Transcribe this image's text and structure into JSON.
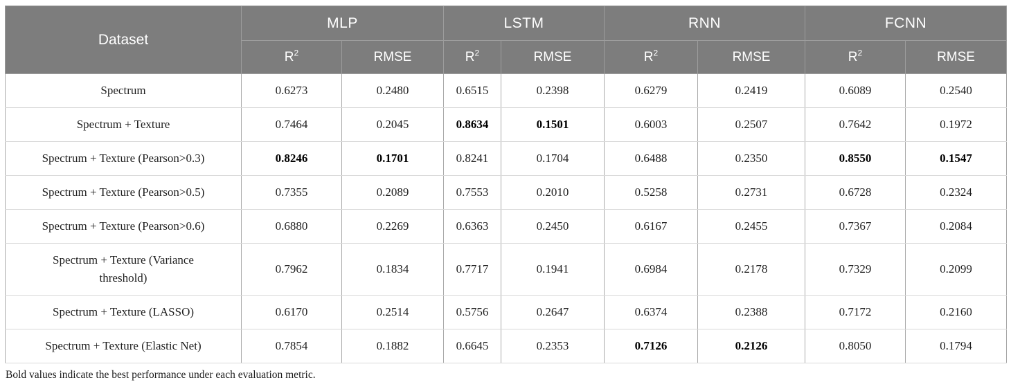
{
  "colors": {
    "header_bg": "#7d7d7d",
    "header_text": "#ffffff",
    "header_line": "#9d9d9d",
    "cell_line_v": "#a8a8a8",
    "cell_line_h": "#d9d9d9",
    "outer_line": "#b5b5b5",
    "body_text": "#1f1f1f",
    "bold_text": "#000000"
  },
  "table": {
    "corner_label": "Dataset",
    "groups": [
      {
        "label": "MLP"
      },
      {
        "label": "LSTM"
      },
      {
        "label": "RNN"
      },
      {
        "label": "FCNN"
      }
    ],
    "metrics": {
      "r2_base": "R",
      "r2_sup": "2",
      "rmse": "RMSE"
    },
    "rows": [
      {
        "dataset": "Spectrum",
        "values": [
          "0.6273",
          "0.2480",
          "0.6515",
          "0.2398",
          "0.6279",
          "0.2419",
          "0.6089",
          "0.2540"
        ],
        "bold": [
          0,
          0,
          0,
          0,
          0,
          0,
          0,
          0
        ]
      },
      {
        "dataset": "Spectrum + Texture",
        "values": [
          "0.7464",
          "0.2045",
          "0.8634",
          "0.1501",
          "0.6003",
          "0.2507",
          "0.7642",
          "0.1972"
        ],
        "bold": [
          0,
          0,
          1,
          1,
          0,
          0,
          0,
          0
        ]
      },
      {
        "dataset": "Spectrum + Texture (Pearson>0.3)",
        "values": [
          "0.8246",
          "0.1701",
          "0.8241",
          "0.1704",
          "0.6488",
          "0.2350",
          "0.8550",
          "0.1547"
        ],
        "bold": [
          1,
          1,
          0,
          0,
          0,
          0,
          1,
          1
        ]
      },
      {
        "dataset": "Spectrum + Texture (Pearson>0.5)",
        "values": [
          "0.7355",
          "0.2089",
          "0.7553",
          "0.2010",
          "0.5258",
          "0.2731",
          "0.6728",
          "0.2324"
        ],
        "bold": [
          0,
          0,
          0,
          0,
          0,
          0,
          0,
          0
        ]
      },
      {
        "dataset": "Spectrum + Texture (Pearson>0.6)",
        "values": [
          "0.6880",
          "0.2269",
          "0.6363",
          "0.2450",
          "0.6167",
          "0.2455",
          "0.7367",
          "0.2084"
        ],
        "bold": [
          0,
          0,
          0,
          0,
          0,
          0,
          0,
          0
        ]
      },
      {
        "dataset": "Spectrum + Texture (Variance threshold)",
        "values": [
          "0.7962",
          "0.1834",
          "0.7717",
          "0.1941",
          "0.6984",
          "0.2178",
          "0.7329",
          "0.2099"
        ],
        "bold": [
          0,
          0,
          0,
          0,
          0,
          0,
          0,
          0
        ]
      },
      {
        "dataset": "Spectrum + Texture (LASSO)",
        "values": [
          "0.6170",
          "0.2514",
          "0.5756",
          "0.2647",
          "0.6374",
          "0.2388",
          "0.7172",
          "0.2160"
        ],
        "bold": [
          0,
          0,
          0,
          0,
          0,
          0,
          0,
          0
        ]
      },
      {
        "dataset": "Spectrum + Texture (Elastic Net)",
        "values": [
          "0.7854",
          "0.1882",
          "0.6645",
          "0.2353",
          "0.7126",
          "0.2126",
          "0.8050",
          "0.1794"
        ],
        "bold": [
          0,
          0,
          0,
          0,
          1,
          1,
          0,
          0
        ]
      }
    ]
  },
  "footnote": "Bold values indicate the best performance under each evaluation metric."
}
